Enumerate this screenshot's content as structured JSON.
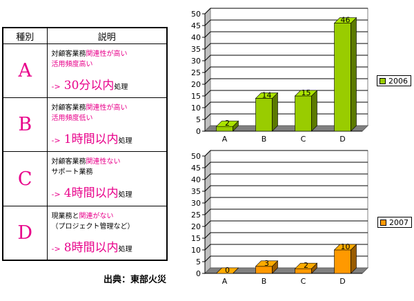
{
  "table": {
    "header_category": "種別",
    "header_description": "説明",
    "rows": [
      {
        "letter": "A",
        "l1_black": "対顧客業務",
        "l1_red": "関連性が高い",
        "l2_black": "",
        "l2_red": "活用頻度高い",
        "arrow": "->",
        "time": "30分以内",
        "suffix": "処理"
      },
      {
        "letter": "B",
        "l1_black": "対顧客業務",
        "l1_red": "関連性が高い",
        "l2_black": "",
        "l2_red": "活用頻度低い",
        "arrow": "->",
        "time": "1時間以内",
        "suffix": "処理"
      },
      {
        "letter": "C",
        "l1_black": "対顧客業務",
        "l1_red": "関連性ない",
        "l2_black": "サポート業務",
        "l2_red": "",
        "arrow": "->",
        "time": "4時間以内",
        "suffix": "処理"
      },
      {
        "letter": "D",
        "l1_black": "現業務と",
        "l1_red": "関連がない",
        "l2_black": "（プロジェクト管理など）",
        "l2_red": "",
        "arrow": "->",
        "time": "8時間以内",
        "suffix": "処理"
      }
    ]
  },
  "source": "出典：東部火災",
  "colors": {
    "accent_red": "#e8008a",
    "bar_2006": "#99cc00",
    "bar_2007": "#ff9900"
  },
  "chart_data": [
    {
      "type": "bar",
      "categories": [
        "A",
        "B",
        "C",
        "D"
      ],
      "series": [
        {
          "name": "2006",
          "values": [
            2,
            14,
            15,
            46
          ]
        }
      ],
      "ylim": [
        0,
        50
      ],
      "yticks": [
        0,
        5,
        10,
        15,
        20,
        25,
        30,
        35,
        40,
        45,
        50
      ],
      "title": "",
      "xlabel": "",
      "ylabel": "",
      "grid": true,
      "legend": "right",
      "style": "3d"
    },
    {
      "type": "bar",
      "categories": [
        "A",
        "B",
        "C",
        "D"
      ],
      "series": [
        {
          "name": "2007",
          "values": [
            0,
            3,
            2,
            10
          ]
        }
      ],
      "ylim": [
        0,
        50
      ],
      "yticks": [
        0,
        5,
        10,
        15,
        20,
        25,
        30,
        35,
        40,
        45,
        50
      ],
      "title": "",
      "xlabel": "",
      "ylabel": "",
      "grid": true,
      "legend": "right",
      "style": "3d"
    }
  ]
}
